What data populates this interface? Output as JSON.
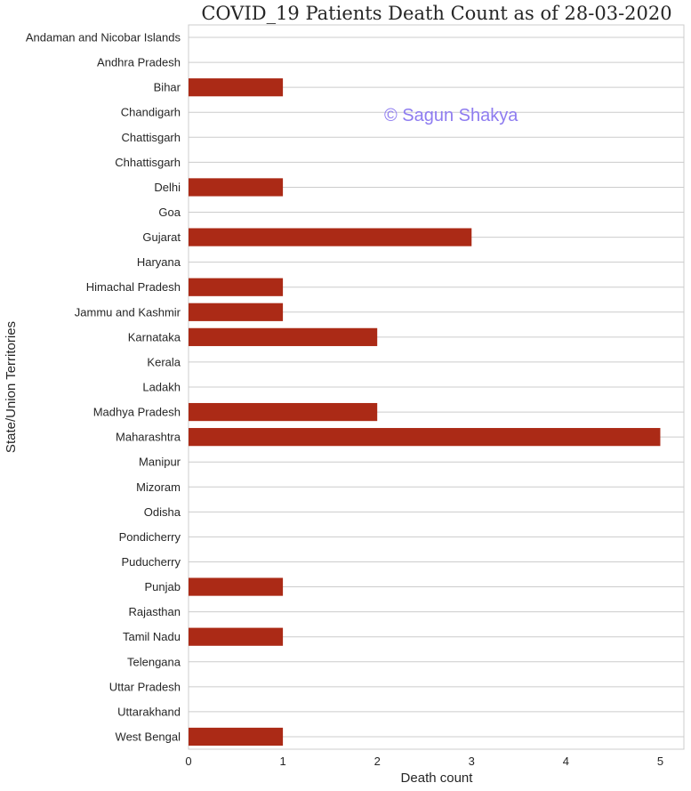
{
  "chart_data": {
    "type": "bar",
    "orientation": "horizontal",
    "title": "COVID_19 Patients Death Count as of 28-03-2020",
    "xlabel": "Death count",
    "ylabel": "State/Union Territories",
    "categories": [
      "Andaman and Nicobar Islands",
      "Andhra Pradesh",
      "Bihar",
      "Chandigarh",
      "Chattisgarh",
      "Chhattisgarh",
      "Delhi",
      "Goa",
      "Gujarat",
      "Haryana",
      "Himachal Pradesh",
      "Jammu and Kashmir",
      "Karnataka",
      "Kerala",
      "Ladakh",
      "Madhya Pradesh",
      "Maharashtra",
      "Manipur",
      "Mizoram",
      "Odisha",
      "Pondicherry",
      "Puducherry",
      "Punjab",
      "Rajasthan",
      "Tamil Nadu",
      "Telengana",
      "Uttar Pradesh",
      "Uttarakhand",
      "West Bengal"
    ],
    "values": [
      0,
      0,
      1,
      0,
      0,
      0,
      1,
      0,
      3,
      0,
      1,
      1,
      2,
      0,
      0,
      2,
      5,
      0,
      0,
      0,
      0,
      0,
      1,
      0,
      1,
      0,
      0,
      0,
      1
    ],
    "xlim": [
      0,
      5.25
    ],
    "xticks": [
      0,
      1,
      2,
      3,
      4,
      5
    ],
    "grid": "horizontal",
    "bar_color": "#ab2a16",
    "watermark": "© Sagun Shakya",
    "watermark_color": "#8e7cf0"
  }
}
